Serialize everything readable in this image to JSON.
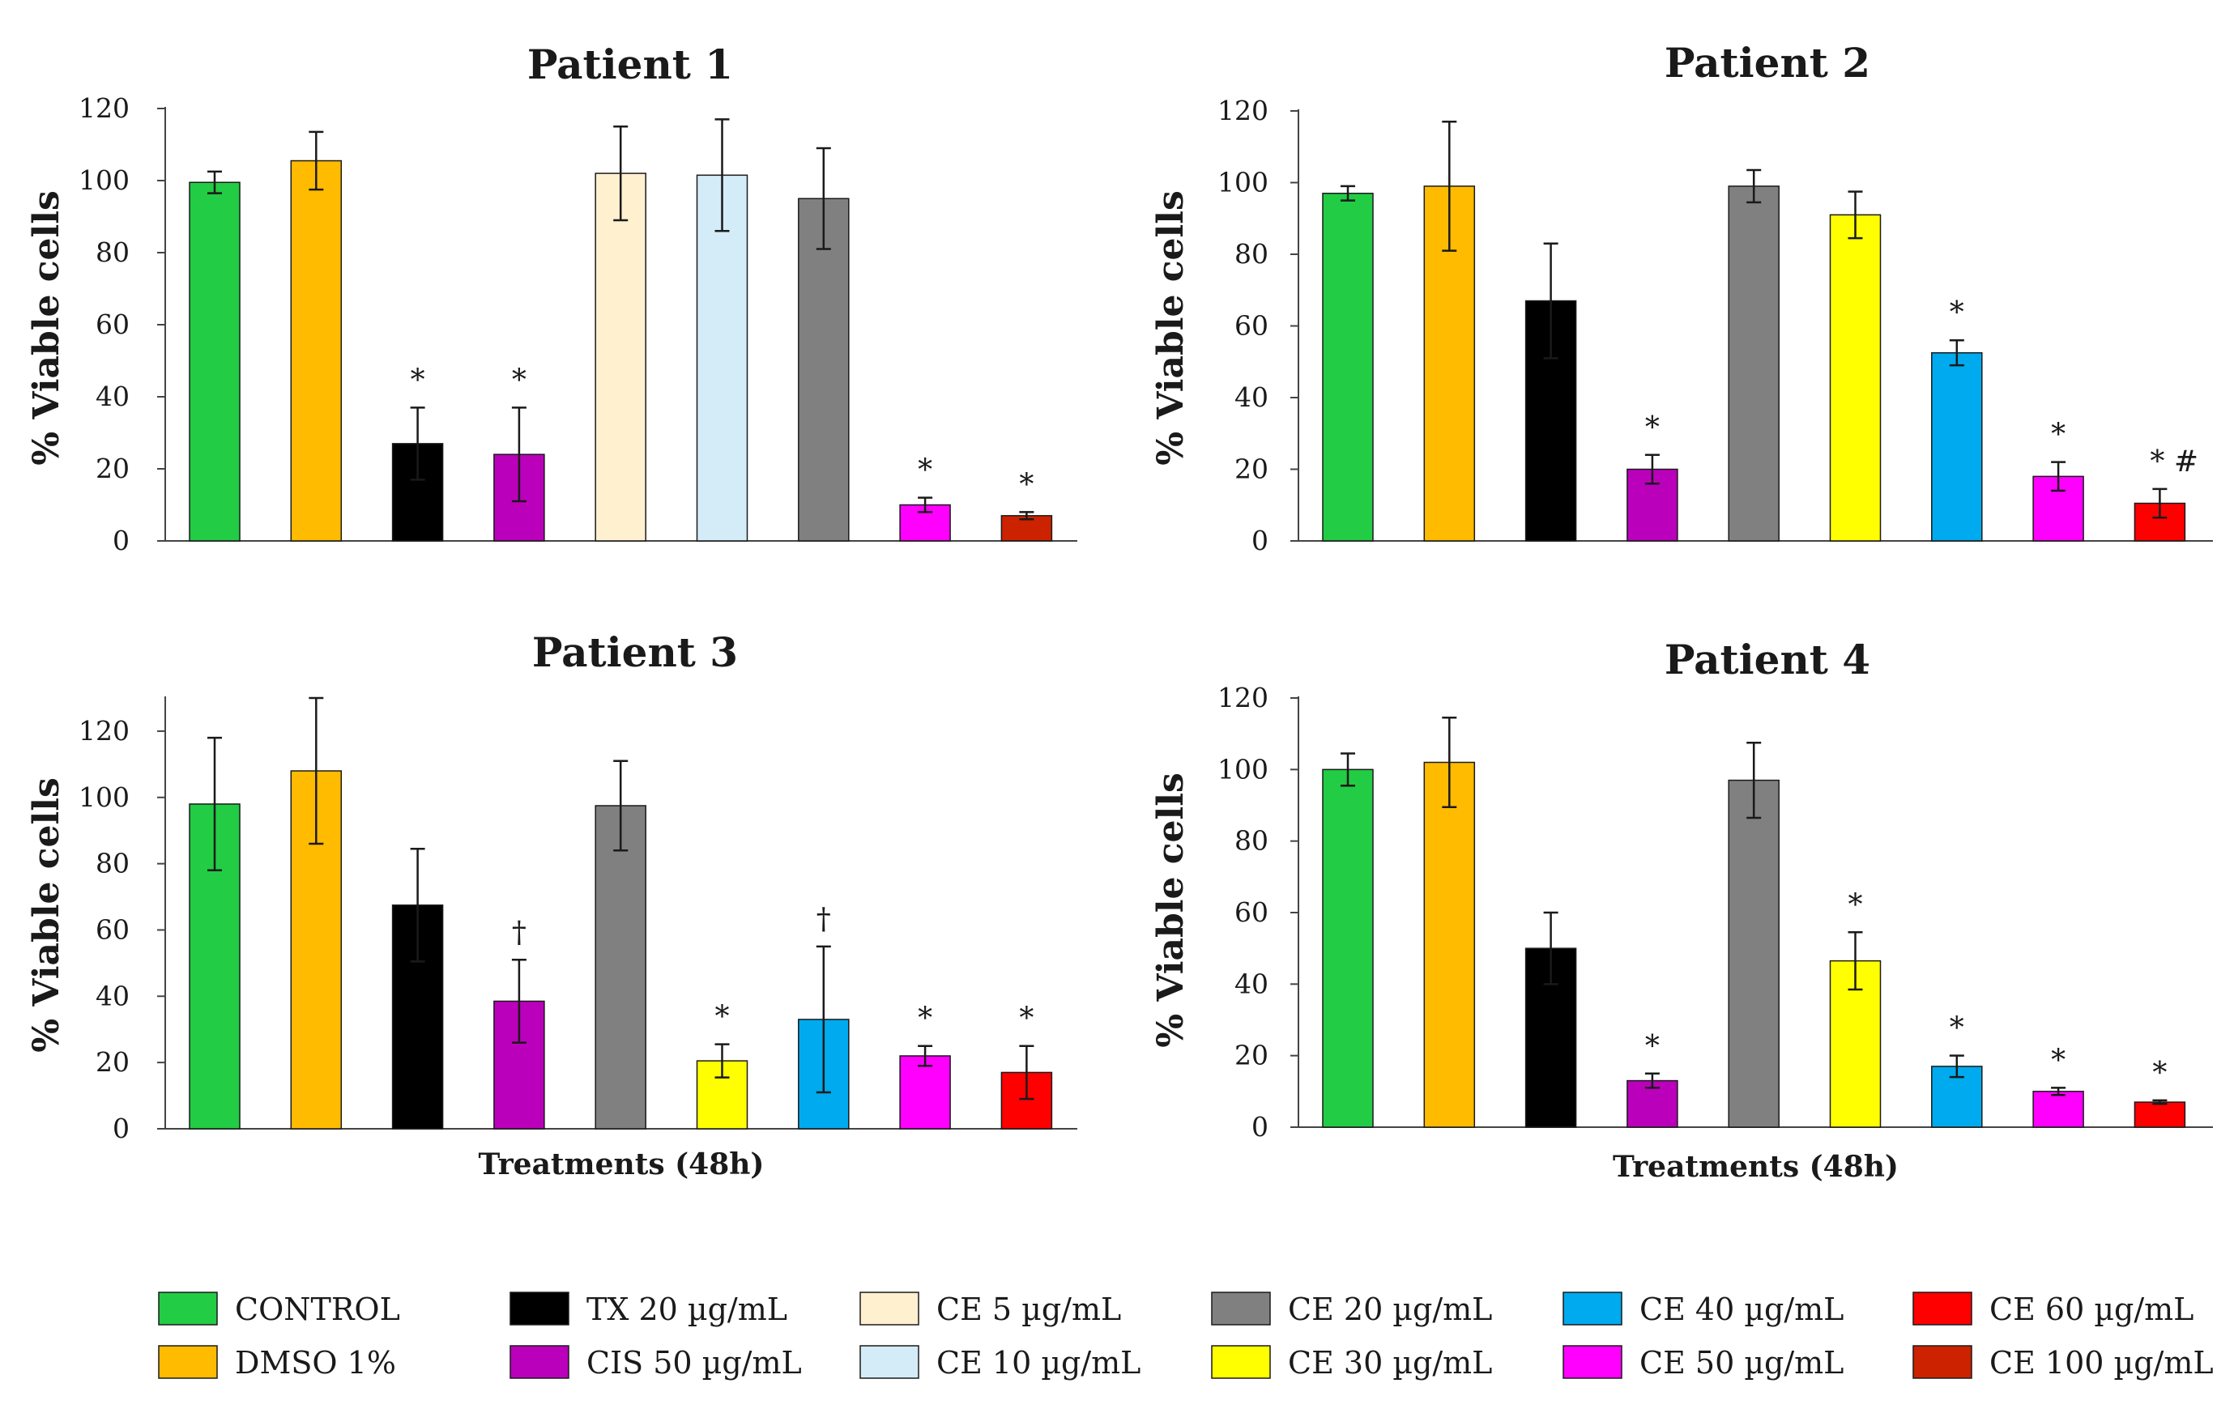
{
  "treatments": [
    {
      "key": "control",
      "label": "CONTROL",
      "color": "#22cc44"
    },
    {
      "key": "dmso",
      "label": "DMSO 1%",
      "color": "#ffbb00"
    },
    {
      "key": "tx20",
      "label": "TX  20 µg/mL",
      "color": "#000000"
    },
    {
      "key": "cis50",
      "label": "CIS 50 µg/mL",
      "color": "#bb00bb"
    },
    {
      "key": "ce5",
      "label": "CE 5 µg/mL",
      "color": "#fff0d0"
    },
    {
      "key": "ce10",
      "label": "CE 10 µg/mL",
      "color": "#d4ecf8"
    },
    {
      "key": "ce20",
      "label": "CE 20 µg/mL",
      "color": "#808080"
    },
    {
      "key": "ce30",
      "label": "CE 30 µg/mL",
      "color": "#ffff00"
    },
    {
      "key": "ce40",
      "label": "CE 40 µg/mL",
      "color": "#00aaee"
    },
    {
      "key": "ce50",
      "label": "CE 50 µg/mL",
      "color": "#ff00ff"
    },
    {
      "key": "ce60",
      "label": "CE 60 µg/mL",
      "color": "#ff0000"
    },
    {
      "key": "ce100",
      "label": "CE 100 µg/mL",
      "color": "#cc2200"
    }
  ],
  "legend_columns": [
    [
      "control",
      "dmso"
    ],
    [
      "tx20",
      "cis50"
    ],
    [
      "ce5",
      "ce10"
    ],
    [
      "ce20",
      "ce30"
    ],
    [
      "ce40",
      "ce50"
    ],
    [
      "ce60",
      "ce100"
    ]
  ],
  "chart_data": [
    {
      "type": "bar",
      "title": "Patient 1",
      "ylabel": "% Viable cells",
      "xlabel": "",
      "ylim": [
        0,
        120
      ],
      "yticks": [
        "0",
        "20",
        "40",
        "60",
        "80",
        "100",
        "120"
      ],
      "categories": [
        "control",
        "dmso",
        "tx20",
        "cis50",
        "ce5",
        "ce10",
        "ce20",
        "ce50",
        "ce100"
      ],
      "values": [
        99.5,
        105.5,
        27,
        24,
        102,
        101.5,
        95,
        10,
        7
      ],
      "errors": [
        3,
        8,
        10,
        13,
        13,
        15.5,
        14,
        2,
        1
      ],
      "markers": [
        "",
        "",
        "*",
        "*",
        "",
        "",
        "",
        "*",
        "*"
      ]
    },
    {
      "type": "bar",
      "title": "Patient 2",
      "ylabel": "% Viable cells",
      "xlabel": "",
      "ylim": [
        0,
        120
      ],
      "yticks": [
        "0",
        "20",
        "40",
        "60",
        "80",
        "100",
        "120"
      ],
      "categories": [
        "control",
        "dmso",
        "tx20",
        "cis50",
        "ce20",
        "ce30",
        "ce40",
        "ce50",
        "ce60"
      ],
      "values": [
        97,
        99,
        67,
        20,
        99,
        91,
        52.5,
        18,
        10.5
      ],
      "errors": [
        2,
        18,
        16,
        4,
        4.5,
        6.5,
        3.5,
        4,
        4
      ],
      "markers": [
        "",
        "",
        "",
        "*",
        "",
        "",
        "*",
        "*",
        "* #"
      ]
    },
    {
      "type": "bar",
      "title": "Patient 3",
      "ylabel": "% Viable cells",
      "xlabel": "Treatments (48h)",
      "ylim": [
        0,
        130
      ],
      "yticks": [
        "0",
        "20",
        "40",
        "60",
        "80",
        "100",
        "120"
      ],
      "categories": [
        "control",
        "dmso",
        "tx20",
        "cis50",
        "ce20",
        "ce30",
        "ce40",
        "ce50",
        "ce60"
      ],
      "values": [
        98,
        108,
        67.5,
        38.5,
        97.5,
        20.5,
        33,
        22,
        17
      ],
      "errors": [
        20,
        22,
        17,
        12.5,
        13.5,
        5,
        22,
        3,
        8
      ],
      "markers": [
        "",
        "",
        "",
        "†",
        "",
        "*",
        "†",
        "*",
        "*"
      ]
    },
    {
      "type": "bar",
      "title": "Patient 4",
      "ylabel": "% Viable cells",
      "xlabel": "Treatments (48h)",
      "ylim": [
        0,
        120
      ],
      "yticks": [
        "0",
        "20",
        "40",
        "60",
        "80",
        "100",
        "120"
      ],
      "categories": [
        "control",
        "dmso",
        "tx20",
        "cis50",
        "ce20",
        "ce30",
        "ce40",
        "ce50",
        "ce60"
      ],
      "values": [
        100,
        102,
        50,
        13,
        97,
        46.5,
        17,
        10,
        7
      ],
      "errors": [
        4.5,
        12.5,
        10,
        2,
        10.5,
        8,
        3,
        1,
        0.5
      ],
      "markers": [
        "",
        "",
        "",
        "*",
        "",
        "*",
        "*",
        "*",
        "*"
      ]
    }
  ]
}
